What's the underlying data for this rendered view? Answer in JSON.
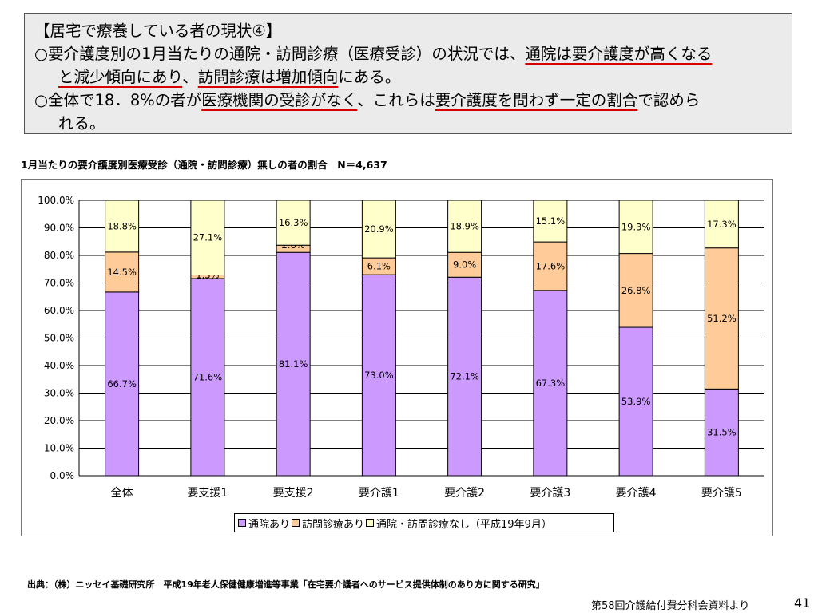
{
  "header": {
    "line1": "【居宅で療養している者の現状④】",
    "line2_pre": "○要介護度別の1月当たりの通院・訪問診療（医療受診）の状況では、",
    "line2_ul": "通院は要介護度が高くなる",
    "line3_ul1": "と減少傾向にあり",
    "line3_mid": "、",
    "line3_ul2": "訪問診療は増加傾向",
    "line3_post": "にある。",
    "line4_pre": "○全体で18．8%の者が",
    "line4_ul1": "医療機関の受診がなく",
    "line4_mid": "、これらは",
    "line4_ul2": "要介護度を問わず一定の割合",
    "line4_post": "で認めら",
    "line5": "れる。"
  },
  "chart_title": "1月当たりの要介護度別医療受診（通院・訪問診療）無しの者の割合　N＝4,637",
  "chart_data": {
    "type": "bar",
    "stacked": true,
    "categories": [
      "全体",
      "要支援1",
      "要支援2",
      "要介護1",
      "要介護2",
      "要介護3",
      "要介護4",
      "要介護5"
    ],
    "series": [
      {
        "name": "通院あり",
        "values": [
          66.7,
          71.6,
          81.1,
          73.0,
          72.1,
          67.3,
          53.9,
          31.5
        ],
        "color": "#cc99ff"
      },
      {
        "name": "訪問診療あり",
        "values": [
          14.5,
          1.3,
          2.6,
          6.1,
          9.0,
          17.6,
          26.8,
          51.2
        ],
        "color": "#ffcc99"
      },
      {
        "name": "通院・訪問診療なし（平成19年9月）",
        "values": [
          18.8,
          27.1,
          16.3,
          20.9,
          18.9,
          15.1,
          19.3,
          17.3
        ],
        "color": "#ffffcc"
      }
    ],
    "data_labels": [
      [
        "66.7%",
        "14.5%",
        "18.8%"
      ],
      [
        "71.6%",
        "1.3%",
        "27.1%"
      ],
      [
        "81.1%",
        "2.6%",
        "16.3%"
      ],
      [
        "73.0%",
        "6.1%",
        "20.9%"
      ],
      [
        "72.1%",
        "9.0%",
        "18.9%"
      ],
      [
        "67.3%",
        "17.6%",
        "15.1%"
      ],
      [
        "53.9%",
        "26.8%",
        "19.3%"
      ],
      [
        "31.5%",
        "51.2%",
        "17.3%"
      ]
    ],
    "ylim": [
      0,
      100
    ],
    "yticks": [
      0,
      10,
      20,
      30,
      40,
      50,
      60,
      70,
      80,
      90,
      100
    ],
    "ytick_labels": [
      "0.0%",
      "10.0%",
      "20.0%",
      "30.0%",
      "40.0%",
      "50.0%",
      "60.0%",
      "70.0%",
      "80.0%",
      "90.0%",
      "100.0%"
    ],
    "grid": true,
    "legend_position": "bottom"
  },
  "legend": {
    "items": [
      "通院あり",
      "訪問診療あり",
      "通院・訪問診療なし（平成19年9月）"
    ]
  },
  "source_note": "出典：（株）ニッセイ基礎研究所　平成19年老人保健健康増進等事業「在宅要介護者へのサービス提供体制のあり方に関する研究」",
  "footer_ref": "第58回介護給付費分科会資料より",
  "page_number": "41"
}
